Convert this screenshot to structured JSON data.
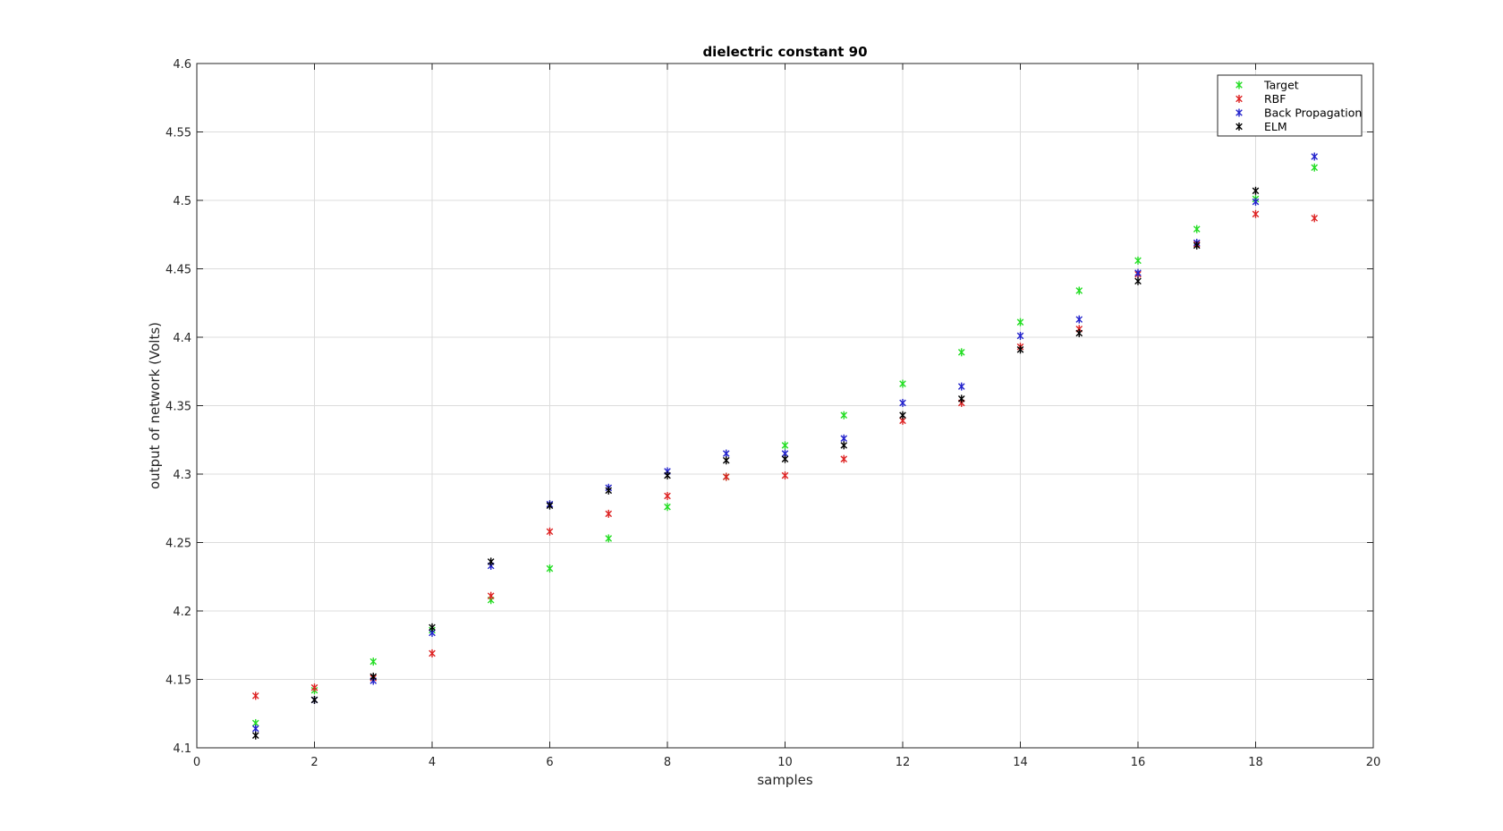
{
  "chart_data": {
    "type": "scatter",
    "title": "dielectric constant 90",
    "xlabel": "samples",
    "ylabel": "output of network (Volts)",
    "xlim": [
      0,
      20
    ],
    "ylim": [
      4.1,
      4.6
    ],
    "xticks": [
      "0",
      "2",
      "4",
      "6",
      "8",
      "10",
      "12",
      "14",
      "16",
      "18",
      "20"
    ],
    "yticks": [
      "4.1",
      "4.15",
      "4.2",
      "4.25",
      "4.3",
      "4.35",
      "4.4",
      "4.45",
      "4.5",
      "4.55",
      "4.6"
    ],
    "grid": true,
    "legend_position": "top-right",
    "marker": "asterisk",
    "x": [
      1,
      2,
      3,
      4,
      5,
      6,
      7,
      8,
      9,
      10,
      11,
      12,
      13,
      14,
      15,
      16,
      17,
      18,
      19
    ],
    "series": [
      {
        "name": "Target",
        "color": "#22dd22",
        "values": [
          4.118,
          4.142,
          4.163,
          4.186,
          4.208,
          4.231,
          4.253,
          4.276,
          4.298,
          4.321,
          4.343,
          4.366,
          4.389,
          4.411,
          4.434,
          4.456,
          4.479,
          4.501,
          4.524
        ]
      },
      {
        "name": "RBF",
        "color": "#dd2222",
        "values": [
          4.138,
          4.144,
          4.151,
          4.169,
          4.211,
          4.258,
          4.271,
          4.284,
          4.298,
          4.299,
          4.311,
          4.339,
          4.352,
          4.393,
          4.406,
          4.446,
          4.468,
          4.49,
          4.487
        ]
      },
      {
        "name": "Back Propagation",
        "color": "#2222cc",
        "values": [
          4.114,
          4.135,
          4.149,
          4.184,
          4.233,
          4.278,
          4.29,
          4.302,
          4.315,
          4.315,
          4.326,
          4.352,
          4.364,
          4.401,
          4.413,
          4.447,
          4.469,
          4.499,
          4.532
        ]
      },
      {
        "name": "ELM",
        "color": "#000000",
        "values": [
          4.109,
          4.135,
          4.152,
          4.188,
          4.236,
          4.277,
          4.288,
          4.299,
          4.31,
          4.311,
          4.321,
          4.343,
          4.355,
          4.391,
          4.403,
          4.441,
          4.467,
          4.507,
          null
        ]
      }
    ]
  }
}
